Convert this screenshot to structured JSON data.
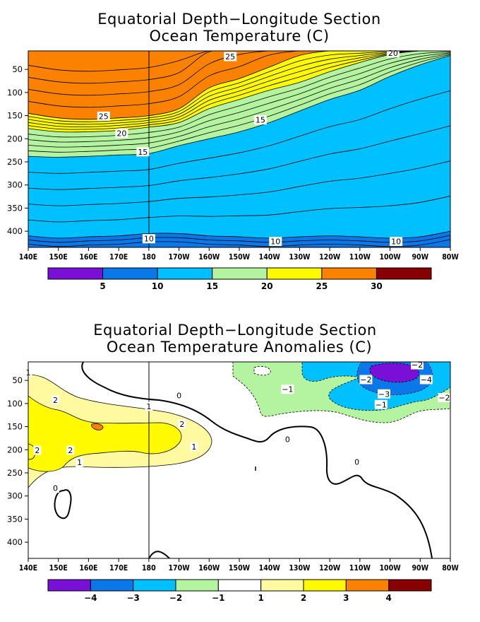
{
  "chart_data": [
    {
      "type": "heatmap",
      "title": "Equatorial Depth−Longitude Section",
      "subtitle": "Ocean Temperature (C)",
      "ylim": [
        435,
        10
      ],
      "y_ticks": [
        "50",
        "100",
        "150",
        "200",
        "250",
        "300",
        "350",
        "400"
      ],
      "x_ticks": [
        "140E",
        "150E",
        "160E",
        "170E",
        "180",
        "170W",
        "160W",
        "150W",
        "140W",
        "130W",
        "120W",
        "110W",
        "100W",
        "90W",
        "80W"
      ],
      "levels": [
        5,
        10,
        15,
        20,
        25,
        30
      ],
      "level_colors": [
        "#7a10d8",
        "#0a78e8",
        "#00c0ff",
        "#b4f4a0",
        "#fffa00",
        "#fa8200",
        "#880000"
      ],
      "colorbar_labels": [
        "5",
        "10",
        "15",
        "20",
        "25",
        "30"
      ],
      "contour_labels": [
        {
          "text": "25",
          "lon": 165,
          "depth": 152
        },
        {
          "text": "20",
          "lon": 171,
          "depth": 189
        },
        {
          "text": "15",
          "lon": 178,
          "depth": 229
        },
        {
          "text": "25",
          "lon": 207,
          "depth": 23
        },
        {
          "text": "15",
          "lon": 217,
          "depth": 160
        },
        {
          "text": "20",
          "lon": 261,
          "depth": 15
        },
        {
          "text": "10",
          "lon": 180,
          "depth": 417
        },
        {
          "text": "10",
          "lon": 222,
          "depth": 423
        },
        {
          "text": "10",
          "lon": 262,
          "depth": 423
        }
      ],
      "isotherm_depths": {
        "lon": [
          140,
          150,
          160,
          170,
          180,
          190,
          200,
          210,
          220,
          230,
          240,
          250,
          260,
          270,
          280
        ],
        "t25": [
          145,
          155,
          158,
          155,
          150,
          135,
          90,
          70,
          45,
          20,
          10,
          10,
          10,
          10,
          10
        ],
        "t20": [
          178,
          185,
          185,
          182,
          175,
          165,
          135,
          115,
          95,
          78,
          55,
          35,
          18,
          10,
          10
        ],
        "t15": [
          238,
          240,
          238,
          235,
          232,
          215,
          200,
          185,
          165,
          140,
          115,
          95,
          65,
          40,
          20
        ],
        "t10": [
          410,
          415,
          412,
          410,
          405,
          405,
          410,
          412,
          415,
          412,
          410,
          412,
          415,
          412,
          400
        ]
      }
    },
    {
      "type": "heatmap",
      "title": "Equatorial Depth−Longitude Section",
      "subtitle": "Ocean Temperature Anomalies (C)",
      "ylim": [
        435,
        10
      ],
      "y_ticks": [
        "50",
        "100",
        "150",
        "200",
        "250",
        "300",
        "350",
        "400"
      ],
      "x_ticks": [
        "140E",
        "150E",
        "160E",
        "170E",
        "180",
        "170W",
        "160W",
        "150W",
        "140W",
        "130W",
        "120W",
        "110W",
        "100W",
        "90W",
        "80W"
      ],
      "levels": [
        -4,
        -3,
        -2,
        -1,
        1,
        2,
        3,
        4
      ],
      "level_colors": [
        "#7a10d8",
        "#0a78e8",
        "#00c0ff",
        "#b4f4a0",
        "#ffffff",
        "#fffaa0",
        "#fffa00",
        "#fa8200",
        "#880000"
      ],
      "colorbar_labels": [
        "−4",
        "−3",
        "−2",
        "−1",
        "1",
        "2",
        "3",
        "4"
      ],
      "contour_labels": [
        {
          "text": "1",
          "lon": 140,
          "depth": 34
        },
        {
          "text": "2",
          "lon": 149,
          "depth": 93
        },
        {
          "text": "2",
          "lon": 143,
          "depth": 202
        },
        {
          "text": "2",
          "lon": 154,
          "depth": 202
        },
        {
          "text": "1",
          "lon": 157,
          "depth": 228
        },
        {
          "text": "0",
          "lon": 149,
          "depth": 284
        },
        {
          "text": "1",
          "lon": 180,
          "depth": 107
        },
        {
          "text": "0",
          "lon": 190,
          "depth": 83
        },
        {
          "text": "2",
          "lon": 191,
          "depth": 145
        },
        {
          "text": "1",
          "lon": 195,
          "depth": 194
        },
        {
          "text": "0",
          "lon": 226,
          "depth": 178
        },
        {
          "text": "−1",
          "lon": 226,
          "depth": 70
        },
        {
          "text": "−2",
          "lon": 252,
          "depth": 49
        },
        {
          "text": "−2",
          "lon": 269,
          "depth": 17
        },
        {
          "text": "−4",
          "lon": 272,
          "depth": 49
        },
        {
          "text": "−3",
          "lon": 258,
          "depth": 80
        },
        {
          "text": "−1",
          "lon": 257,
          "depth": 103
        },
        {
          "text": "−2",
          "lon": 278,
          "depth": 88
        },
        {
          "text": "0",
          "lon": 249,
          "depth": 227
        }
      ]
    }
  ]
}
